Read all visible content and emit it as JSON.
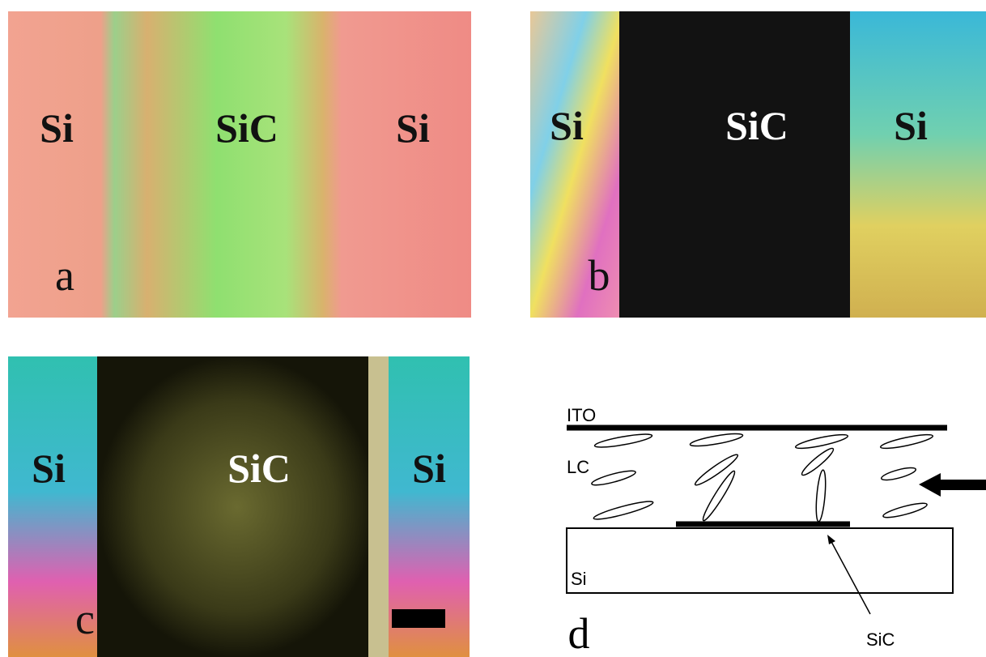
{
  "panels": [
    {
      "label": "a",
      "regions": [
        "Si",
        "SiC",
        "Si"
      ]
    },
    {
      "label": "b",
      "regions": [
        "Si",
        "SiC",
        "Si"
      ]
    },
    {
      "label": "c",
      "regions": [
        "Si",
        "SiC",
        "Si"
      ]
    }
  ],
  "diagram": {
    "label": "d",
    "ito": "ITO",
    "lc": "LC",
    "substrate": "Si",
    "sic": "SiC"
  }
}
